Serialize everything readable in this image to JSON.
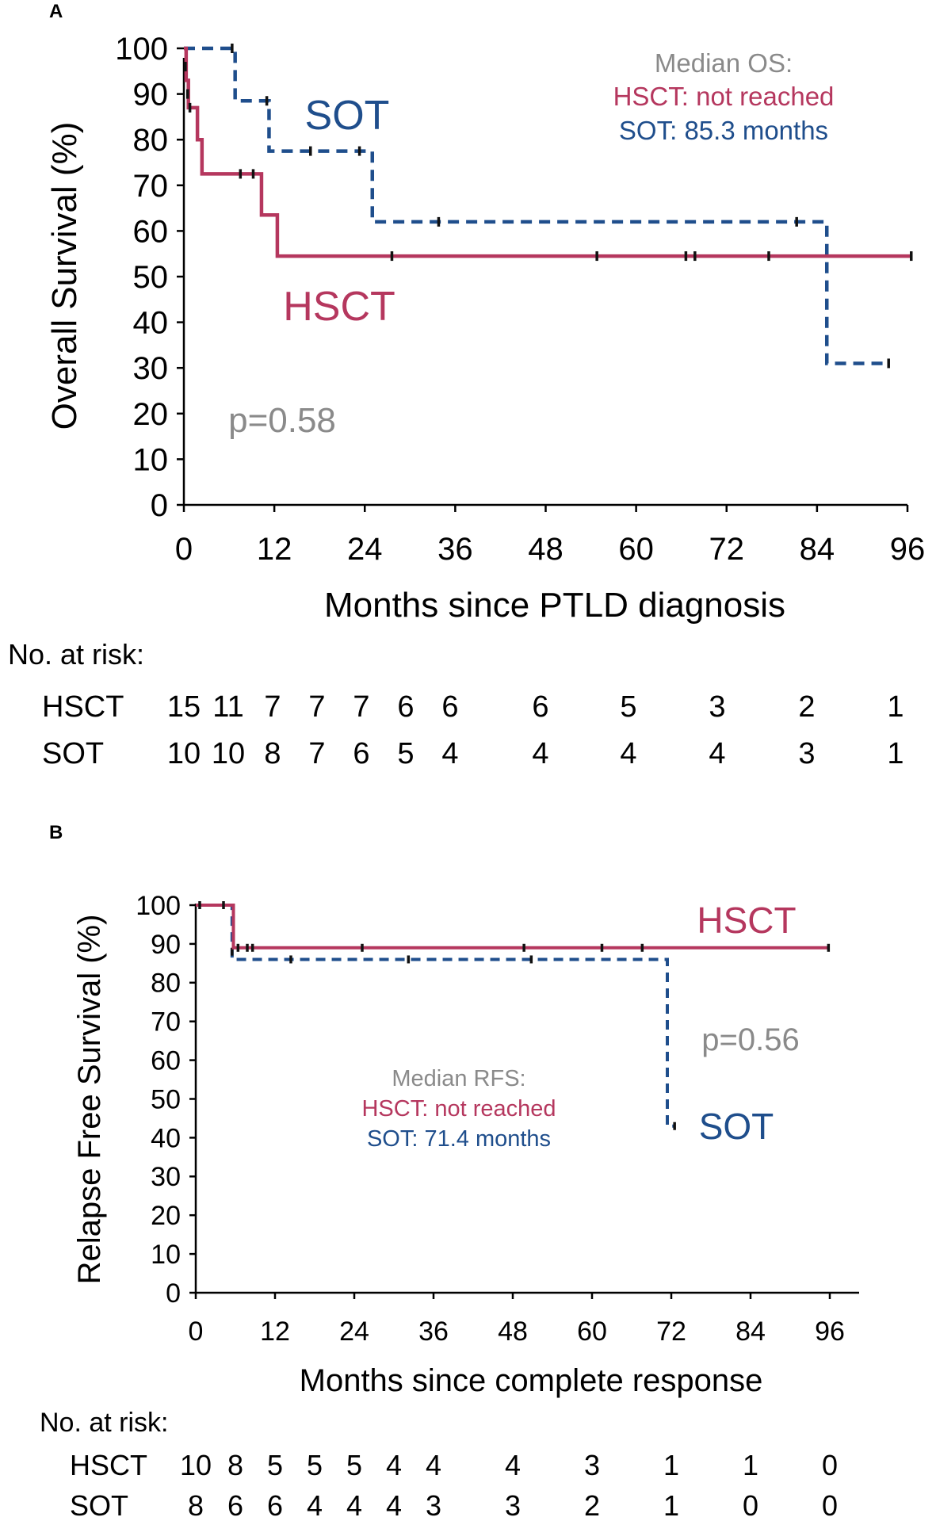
{
  "colors": {
    "hsct": "#b5375e",
    "sot": "#1f4e8c",
    "annotation": "#8a8a8a",
    "axis": "#000000"
  },
  "chart_data": [
    {
      "type": "line",
      "panel_label": "A",
      "title": "",
      "xlabel": "Months since PTLD diagnosis",
      "ylabel": "Overall Survival (%)",
      "xlim": [
        0,
        96
      ],
      "ylim": [
        0,
        100
      ],
      "xticks": [
        0,
        12,
        24,
        36,
        48,
        60,
        72,
        84,
        96
      ],
      "yticks": [
        0,
        10,
        20,
        30,
        40,
        50,
        60,
        70,
        80,
        90,
        100
      ],
      "series": [
        {
          "name": "HSCT",
          "style": "solid",
          "steps": [
            [
              0,
              100
            ],
            [
              0.3,
              93
            ],
            [
              0.6,
              87
            ],
            [
              1.8,
              80
            ],
            [
              2.4,
              72.5
            ],
            [
              10.3,
              63.5
            ],
            [
              12.4,
              54.5
            ],
            [
              96.5,
              54.5
            ]
          ],
          "censor": [
            [
              0.2,
              96
            ],
            [
              0.5,
              90
            ],
            [
              0.8,
              87
            ],
            [
              7.5,
              72.5
            ],
            [
              9.2,
              72.5
            ],
            [
              27.6,
              54.5
            ],
            [
              54.8,
              54.5
            ],
            [
              66.6,
              54.5
            ],
            [
              67.8,
              54.5
            ],
            [
              77.6,
              54.5
            ],
            [
              96.5,
              54.5
            ]
          ]
        },
        {
          "name": "SOT",
          "style": "dashed",
          "steps": [
            [
              0,
              100
            ],
            [
              6.8,
              88.5
            ],
            [
              11.3,
              77.5
            ],
            [
              25,
              62
            ],
            [
              85.3,
              31
            ],
            [
              93.5,
              31
            ]
          ],
          "censor": [
            [
              6.4,
              100
            ],
            [
              11,
              88.5
            ],
            [
              16.8,
              77.5
            ],
            [
              23.3,
              77.5
            ],
            [
              33.8,
              62
            ],
            [
              81.3,
              62
            ],
            [
              93.5,
              31
            ]
          ]
        }
      ],
      "curve_labels": {
        "sot": "SOT",
        "hsct": "HSCT"
      },
      "median": {
        "title": "Median OS:",
        "hsct": "HSCT: not reached",
        "sot": "SOT: 85.3 months"
      },
      "pvalue": "p=0.58",
      "risk_table": {
        "title": "No. at risk:",
        "rows": [
          {
            "label": "HSCT",
            "values": [
              "15",
              "11",
              "7",
              "7",
              "7",
              "6",
              "6",
              "6",
              "5",
              "3",
              "2",
              "1"
            ]
          },
          {
            "label": "SOT",
            "values": [
              "10",
              "10",
              "8",
              "7",
              "6",
              "5",
              "4",
              "4",
              "4",
              "4",
              "3",
              "1"
            ]
          }
        ]
      }
    },
    {
      "type": "line",
      "panel_label": "B",
      "title": "",
      "xlabel": "Months since complete response",
      "ylabel": "Relapse Free Survival (%)",
      "xlim": [
        0,
        96
      ],
      "ylim": [
        0,
        100
      ],
      "xticks": [
        0,
        12,
        24,
        36,
        48,
        60,
        72,
        84,
        96
      ],
      "yticks": [
        0,
        10,
        20,
        30,
        40,
        50,
        60,
        70,
        80,
        90,
        100
      ],
      "series": [
        {
          "name": "HSCT",
          "style": "solid",
          "steps": [
            [
              0,
              100
            ],
            [
              5.7,
              89
            ],
            [
              95.8,
              89
            ]
          ],
          "censor": [
            [
              0.6,
              100
            ],
            [
              4.2,
              100
            ],
            [
              6.4,
              89
            ],
            [
              7.8,
              89
            ],
            [
              8.6,
              89
            ],
            [
              25.2,
              89
            ],
            [
              49.7,
              89
            ],
            [
              61.5,
              89
            ],
            [
              67.6,
              89
            ],
            [
              95.8,
              89
            ]
          ]
        },
        {
          "name": "SOT",
          "style": "dashed",
          "steps": [
            [
              0,
              100
            ],
            [
              5.5,
              86
            ],
            [
              71.4,
              43
            ],
            [
              72.5,
              43
            ]
          ],
          "censor": [
            [
              5.5,
              88
            ],
            [
              14.4,
              86
            ],
            [
              32.2,
              86
            ],
            [
              50.8,
              86
            ],
            [
              72.5,
              43
            ]
          ]
        }
      ],
      "curve_labels": {
        "sot": "SOT",
        "hsct": "HSCT"
      },
      "median": {
        "title": "Median RFS:",
        "hsct": "HSCT: not reached",
        "sot": "SOT: 71.4 months"
      },
      "pvalue": "p=0.56",
      "risk_table": {
        "title": "No. at risk:",
        "rows": [
          {
            "label": "HSCT",
            "values": [
              "10",
              "8",
              "5",
              "5",
              "5",
              "4",
              "4",
              "4",
              "3",
              "1",
              "1",
              "0"
            ]
          },
          {
            "label": "SOT",
            "values": [
              "8",
              "6",
              "6",
              "4",
              "4",
              "4",
              "3",
              "3",
              "2",
              "1",
              "0",
              "0"
            ]
          }
        ]
      }
    }
  ]
}
